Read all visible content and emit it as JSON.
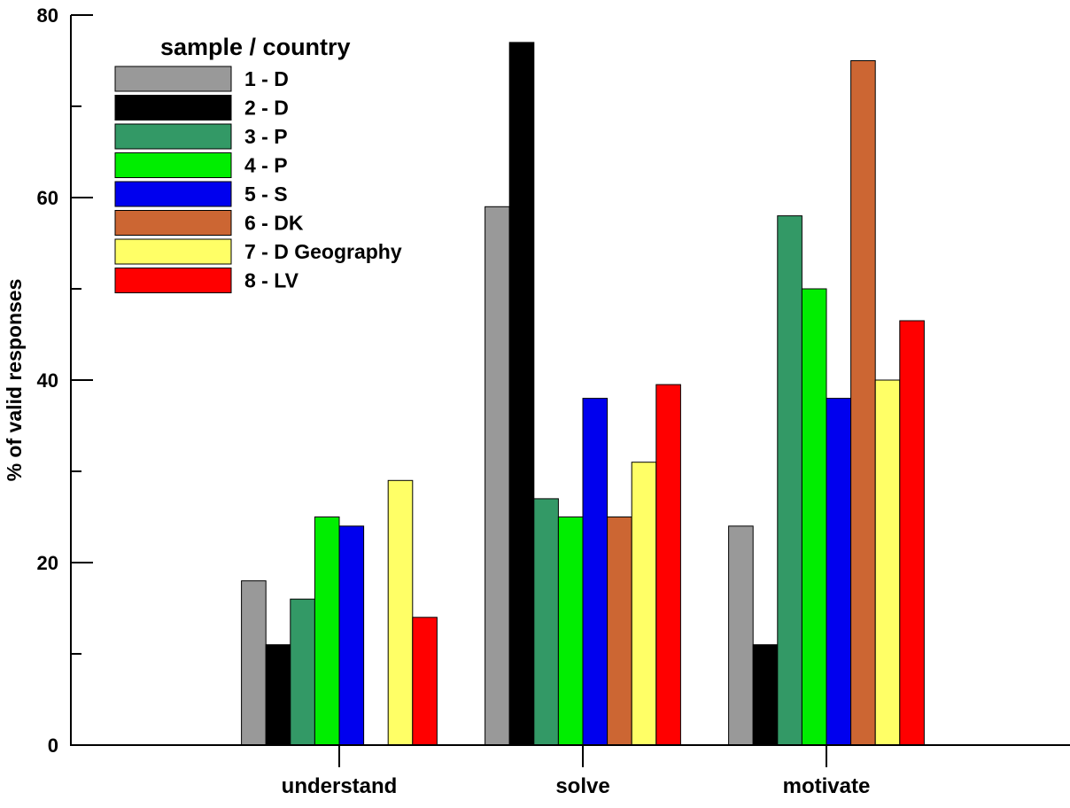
{
  "chart_data": {
    "type": "bar",
    "title": "",
    "xlabel": "",
    "ylabel": "% of valid responses",
    "ylim": [
      0,
      80
    ],
    "yticks_labeled": [
      0,
      20,
      40,
      60,
      80
    ],
    "yticks_minor": [
      10,
      30,
      50,
      70
    ],
    "grid": false,
    "categories": [
      "understand",
      "solve",
      "motivate"
    ],
    "legend": {
      "title": "sample / country",
      "placement": "top-left"
    },
    "series": [
      {
        "name": "1 - D",
        "color": "#999999",
        "values": [
          18,
          59,
          24
        ]
      },
      {
        "name": "2 - D",
        "color": "#000000",
        "values": [
          11,
          77,
          11
        ]
      },
      {
        "name": "3 - P",
        "color": "#339966",
        "values": [
          16,
          27,
          58
        ]
      },
      {
        "name": "4 - P",
        "color": "#00ee00",
        "values": [
          25,
          25,
          50
        ]
      },
      {
        "name": "5 - S",
        "color": "#0000ee",
        "values": [
          24,
          38,
          38
        ]
      },
      {
        "name": "6 - DK",
        "color": "#cc6633",
        "values": [
          null,
          25,
          75
        ]
      },
      {
        "name": "7 - D Geography",
        "color": "#ffff66",
        "values": [
          29,
          31,
          40
        ]
      },
      {
        "name": "8 - LV",
        "color": "#ff0000",
        "values": [
          14,
          39.5,
          46.5
        ]
      }
    ]
  }
}
